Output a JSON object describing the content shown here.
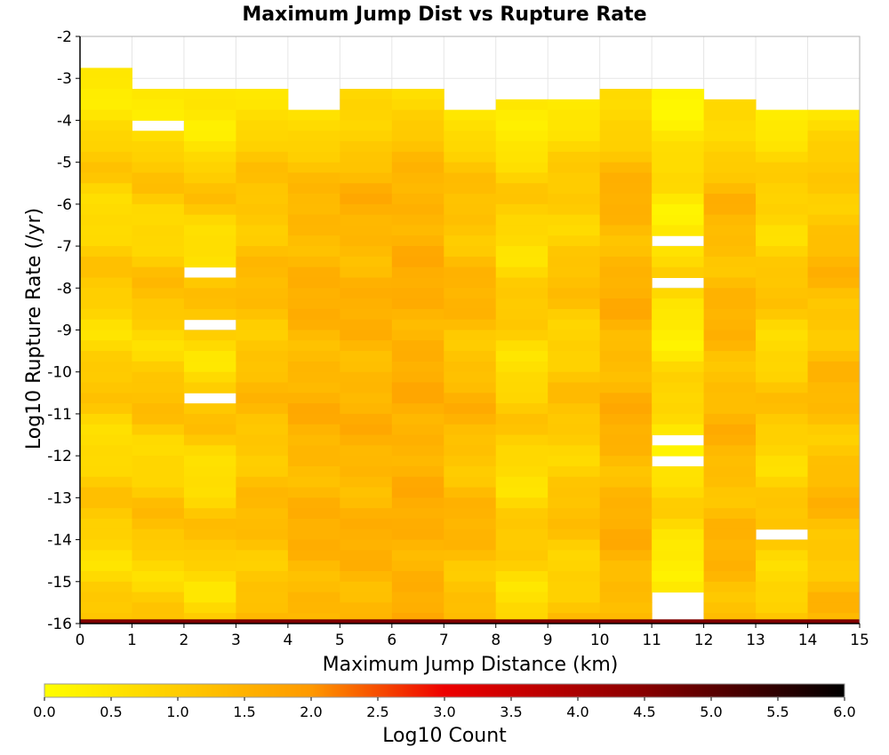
{
  "chart_data": {
    "type": "heatmap",
    "title": "Maximum Jump Dist vs Rupture Rate",
    "xlabel": "Maximum Jump Distance (km)",
    "ylabel": "Log10 Rupture Rate (/yr)",
    "xlim": [
      0,
      15
    ],
    "ylim": [
      -16,
      -2
    ],
    "x_ticks": [
      "0",
      "1",
      "2",
      "3",
      "4",
      "5",
      "6",
      "7",
      "8",
      "9",
      "10",
      "11",
      "12",
      "13",
      "14",
      "15"
    ],
    "y_ticks": [
      "-16",
      "-15",
      "-14",
      "-13",
      "-12",
      "-11",
      "-10",
      "-9",
      "-8",
      "-7",
      "-6",
      "-5",
      "-4",
      "-3",
      "-2"
    ],
    "grid": true,
    "colorbar": {
      "label": "Log10 Count",
      "min": 0.0,
      "max": 6.0,
      "ticks": [
        "0.0",
        "0.5",
        "1.0",
        "1.5",
        "2.0",
        "2.5",
        "3.0",
        "3.5",
        "4.0",
        "4.5",
        "5.0",
        "5.5",
        "6.0"
      ],
      "stops": [
        {
          "v": 0.0,
          "color": "#ffff00"
        },
        {
          "v": 2.0,
          "color": "#ff9900"
        },
        {
          "v": 3.0,
          "color": "#ee0000"
        },
        {
          "v": 4.5,
          "color": "#880000"
        },
        {
          "v": 6.0,
          "color": "#000000"
        }
      ]
    },
    "bin_width_y": 0.25,
    "columns": [
      {
        "x": [
          0,
          1
        ],
        "y_top": -2.75,
        "y_bottom": -16,
        "base": 0.9,
        "amp": 0.35,
        "phase": 0.3,
        "gaps": []
      },
      {
        "x": [
          1,
          2
        ],
        "y_top": -3.25,
        "y_bottom": -16,
        "base": 1.0,
        "amp": 0.4,
        "phase": 1.1,
        "gaps": [
          -4.0
        ]
      },
      {
        "x": [
          2,
          3
        ],
        "y_top": -3.25,
        "y_bottom": -16,
        "base": 0.9,
        "amp": 0.45,
        "phase": 2.0,
        "gaps": [
          -7.5,
          -8.75,
          -10.5
        ]
      },
      {
        "x": [
          3,
          4
        ],
        "y_top": -3.25,
        "y_bottom": -16,
        "base": 1.2,
        "amp": 0.25,
        "phase": 0.7,
        "gaps": []
      },
      {
        "x": [
          4,
          5
        ],
        "y_top": -3.75,
        "y_bottom": -16,
        "base": 1.45,
        "amp": 0.2,
        "phase": 1.7,
        "gaps": []
      },
      {
        "x": [
          5,
          6
        ],
        "y_top": -3.25,
        "y_bottom": -16,
        "base": 1.45,
        "amp": 0.2,
        "phase": 2.5,
        "gaps": []
      },
      {
        "x": [
          6,
          7
        ],
        "y_top": -3.25,
        "y_bottom": -16,
        "base": 1.55,
        "amp": 0.15,
        "phase": 0.2,
        "gaps": []
      },
      {
        "x": [
          7,
          8
        ],
        "y_top": -3.75,
        "y_bottom": -16,
        "base": 1.3,
        "amp": 0.3,
        "phase": 1.4,
        "gaps": []
      },
      {
        "x": [
          8,
          9
        ],
        "y_top": -3.5,
        "y_bottom": -16,
        "base": 0.85,
        "amp": 0.35,
        "phase": 2.2,
        "gaps": []
      },
      {
        "x": [
          9,
          10
        ],
        "y_top": -3.5,
        "y_bottom": -16,
        "base": 1.05,
        "amp": 0.3,
        "phase": 0.9,
        "gaps": []
      },
      {
        "x": [
          10,
          11
        ],
        "y_top": -3.25,
        "y_bottom": -16,
        "base": 1.45,
        "amp": 0.25,
        "phase": 1.9,
        "gaps": []
      },
      {
        "x": [
          11,
          12
        ],
        "y_top": -3.25,
        "y_bottom": -15.25,
        "base": 0.6,
        "amp": 0.4,
        "phase": 0.5,
        "gaps": [
          -6.75,
          -7.75,
          -11.5,
          -12.0
        ]
      },
      {
        "x": [
          12,
          13
        ],
        "y_top": -3.5,
        "y_bottom": -16,
        "base": 1.35,
        "amp": 0.25,
        "phase": 2.8,
        "gaps": []
      },
      {
        "x": [
          13,
          14
        ],
        "y_top": -3.75,
        "y_bottom": -16,
        "base": 0.95,
        "amp": 0.35,
        "phase": 1.2,
        "gaps": [
          -13.75
        ]
      },
      {
        "x": [
          14,
          15
        ],
        "y_top": -3.75,
        "y_bottom": -16,
        "base": 1.25,
        "amp": 0.3,
        "phase": 0.1,
        "gaps": []
      }
    ],
    "bottom_row": {
      "y": [
        -16,
        -15.9
      ],
      "value": 4.6
    }
  }
}
